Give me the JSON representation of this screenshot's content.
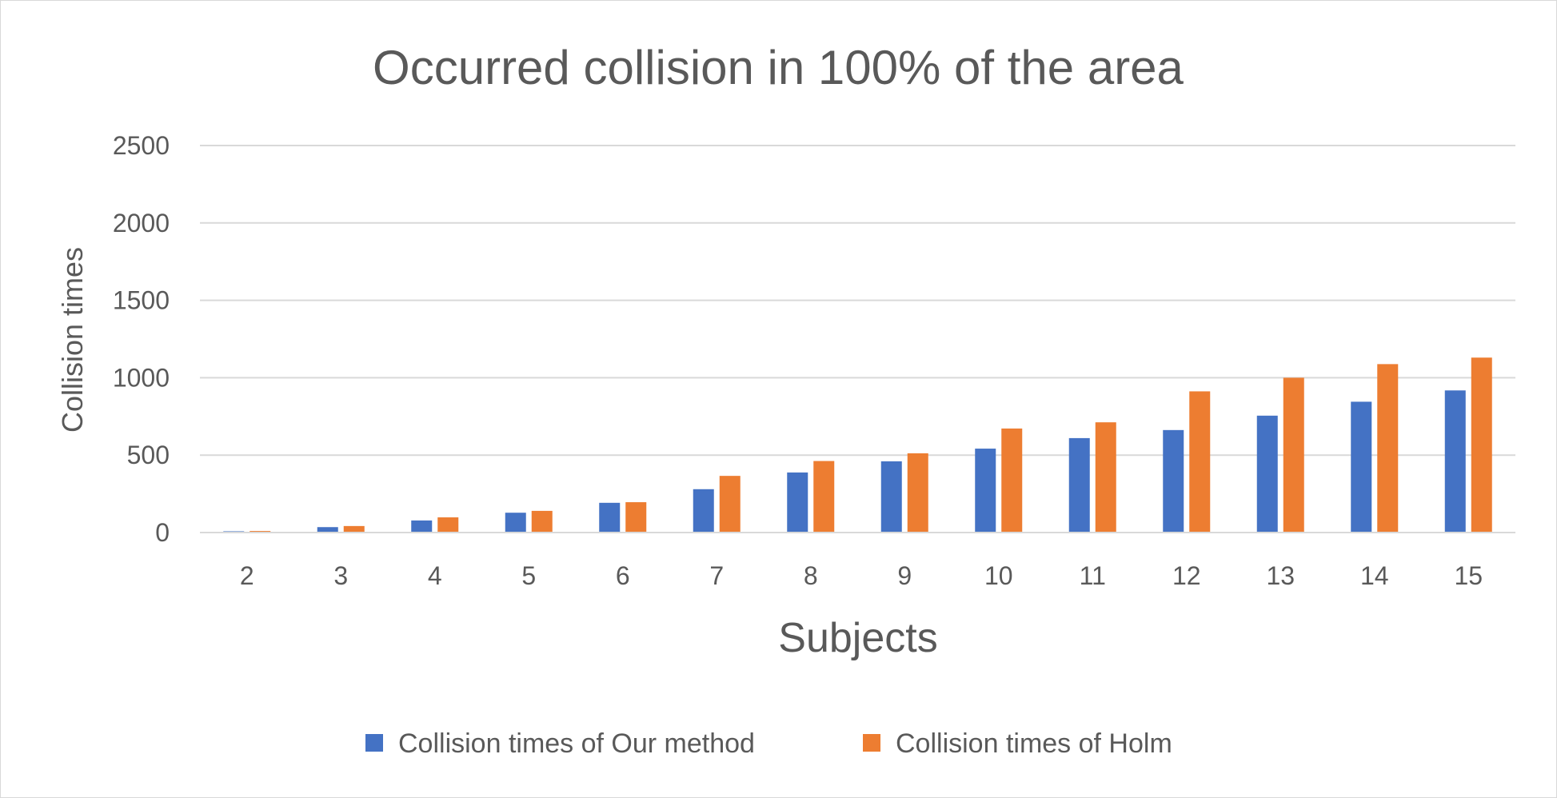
{
  "chart_data": {
    "type": "bar",
    "title": "Occurred collision in 100% of the area",
    "xlabel": "Subjects",
    "ylabel": "Collision times",
    "categories": [
      "2",
      "3",
      "4",
      "5",
      "6",
      "7",
      "8",
      "9",
      "10",
      "11",
      "12",
      "13",
      "14",
      "15"
    ],
    "series": [
      {
        "name": "Collision times of Our method",
        "color": "#4472C4",
        "values": [
          8,
          35,
          78,
          128,
          192,
          280,
          388,
          460,
          542,
          610,
          662,
          755,
          845,
          918
        ]
      },
      {
        "name": "Collision times of Holm",
        "color": "#ED7D31",
        "values": [
          10,
          42,
          98,
          140,
          196,
          366,
          462,
          512,
          672,
          712,
          912,
          1000,
          1088,
          1130
        ]
      }
    ],
    "ylim": [
      0,
      2500
    ],
    "yticks": [
      "0",
      "500",
      "1000",
      "1500",
      "2000",
      "2500"
    ],
    "grid": true,
    "legend_position": "bottom"
  }
}
